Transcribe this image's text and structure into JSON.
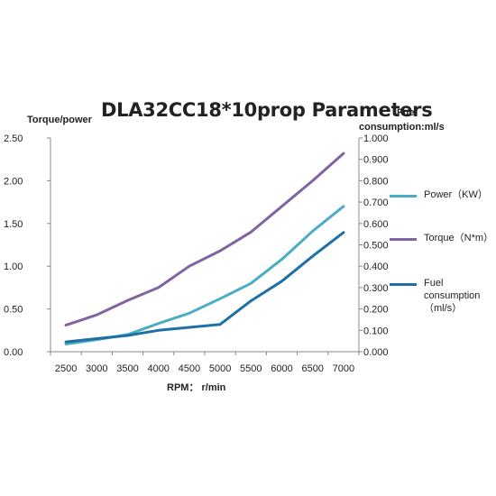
{
  "chart_data": {
    "type": "line",
    "title": "DLA32CC18*10prop Parameters",
    "xlabel": "RPM： r/min",
    "ylabel_left": "Torque/power",
    "ylabel_right_line1": "Fuel",
    "ylabel_right_line2": "consumption:ml/s",
    "x": [
      2500,
      3000,
      3500,
      4000,
      4500,
      5000,
      5500,
      6000,
      6500,
      7000
    ],
    "y_left_ticks": [
      "0.00",
      "0.50",
      "1.00",
      "1.50",
      "2.00",
      "2.50"
    ],
    "y_right_ticks": [
      "0.000",
      "0.100",
      "0.200",
      "0.300",
      "0.400",
      "0.500",
      "0.600",
      "0.700",
      "0.800",
      "0.900",
      "1.000"
    ],
    "ylim_left": [
      0,
      2.5
    ],
    "ylim_right": [
      0,
      1.0
    ],
    "grid": false,
    "legend_position": "right",
    "series": [
      {
        "name": "Power（KW）",
        "axis": "left",
        "color": "#4bacc6",
        "values": [
          0.09,
          0.14,
          0.2,
          0.33,
          0.45,
          0.62,
          0.8,
          1.08,
          1.41,
          1.7
        ]
      },
      {
        "name": "Torque（N*m）",
        "axis": "left",
        "color": "#8064a2",
        "values": [
          0.31,
          0.43,
          0.6,
          0.75,
          1.0,
          1.18,
          1.4,
          1.7,
          2.0,
          2.32
        ]
      },
      {
        "name": "Fuel\nconsumption\n（ml/s）",
        "axis": "right",
        "color": "#1f6fa7",
        "values": [
          0.046,
          0.061,
          0.076,
          0.1,
          0.114,
          0.128,
          0.238,
          0.33,
          0.447,
          0.558
        ]
      }
    ]
  }
}
